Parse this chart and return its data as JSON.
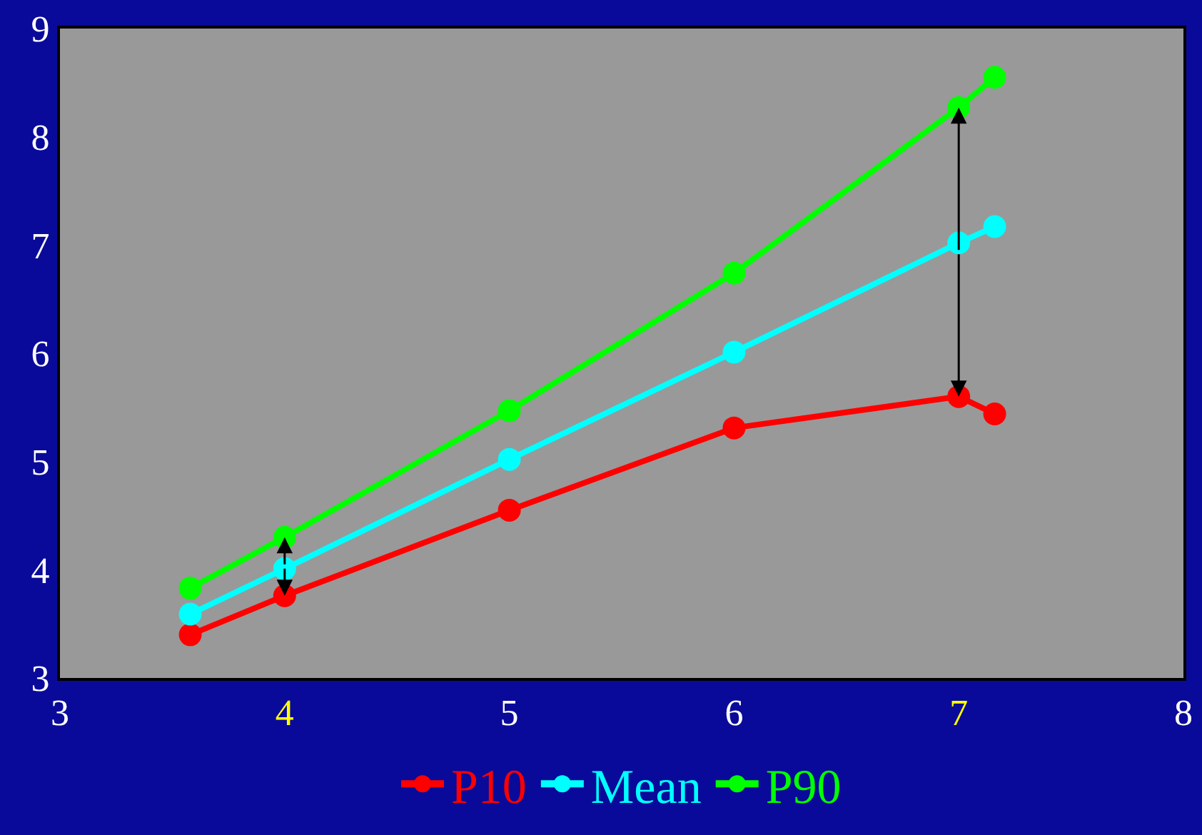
{
  "chart_data": {
    "type": "line",
    "x": [
      3.58,
      4.0,
      5.0,
      6.0,
      7.0,
      7.16
    ],
    "series": [
      {
        "name": "P10",
        "color": "#ff0000",
        "values": [
          3.4,
          3.76,
          4.55,
          5.31,
          5.6,
          5.44
        ]
      },
      {
        "name": "Mean",
        "color": "#00ffff",
        "values": [
          3.59,
          4.01,
          5.02,
          6.01,
          7.02,
          7.17
        ]
      },
      {
        "name": "P90",
        "color": "#00ff00",
        "values": [
          3.83,
          4.3,
          5.47,
          6.74,
          8.27,
          8.55
        ]
      }
    ],
    "xlim": [
      3,
      8
    ],
    "xticks": [
      3,
      4,
      5,
      6,
      7,
      8
    ],
    "ylim": [
      3,
      9
    ],
    "yticks": [
      3,
      4,
      5,
      6,
      7,
      8,
      9
    ],
    "marker": "circle",
    "line_style": "solid",
    "grid": false,
    "legend": "bottom"
  }
}
